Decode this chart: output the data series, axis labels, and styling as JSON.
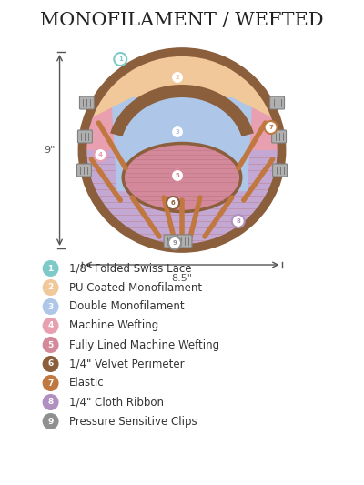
{
  "title": "MONOFILAMENT / WEFTED",
  "title_fontsize": 15,
  "background_color": "#ffffff",
  "legend_items": [
    {
      "num": "1",
      "color": "#7ecac8",
      "label": "1/8\" Folded Swiss Lace"
    },
    {
      "num": "2",
      "color": "#f0c89a",
      "label": "PU Coated Monofilament"
    },
    {
      "num": "3",
      "color": "#aec6e8",
      "label": "Double Monofilament"
    },
    {
      "num": "4",
      "color": "#e8a0b0",
      "label": "Machine Wefting"
    },
    {
      "num": "5",
      "color": "#d4899a",
      "label": "Fully Lined Machine Wefting"
    },
    {
      "num": "6",
      "color": "#8b5e3c",
      "label": "1/4\" Velvet Perimeter"
    },
    {
      "num": "7",
      "color": "#c07840",
      "label": "Elastic"
    },
    {
      "num": "8",
      "color": "#b090c0",
      "label": "1/4\" Cloth Ribbon"
    },
    {
      "num": "9",
      "color": "#909090",
      "label": "Pressure Sensitive Clips"
    }
  ],
  "colors": {
    "outer_circle": "#c4a8d4",
    "outer_circle_edge": "#c4a8d4",
    "swiss_lace": "#7ecac8",
    "pu_mono": "#f0c89a",
    "double_mono": "#aec6e8",
    "machine_weft": "#e8a0b0",
    "machine_weft_stripe": "#c090a8",
    "full_lining": "#d4899a",
    "velvet_band": "#8b5e3c",
    "elastic_band": "#c07840",
    "cloth_ribbon": "#b090c0",
    "clips": "#909090",
    "weft_stripe": "#d090a0"
  },
  "dim_color": "#555555",
  "dim_fontsize": 8
}
